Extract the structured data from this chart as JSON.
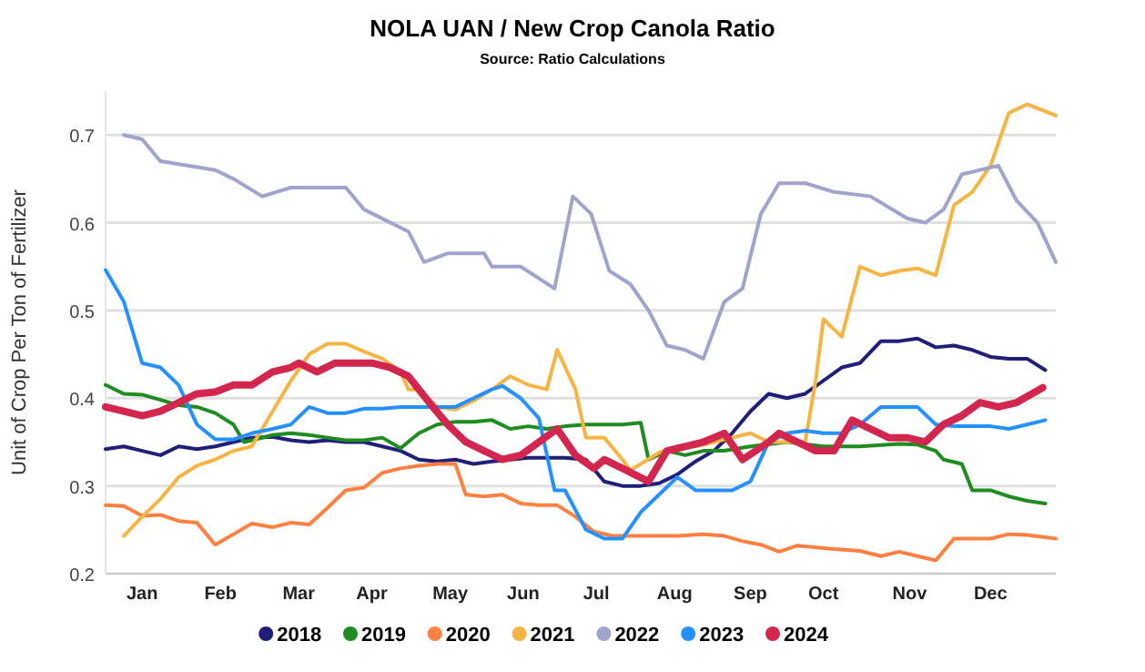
{
  "chart_data": {
    "type": "line",
    "title": "NOLA UAN / New Crop Canola Ratio",
    "subtitle": "Source: Ratio Calculations",
    "ylabel": "Unit of Crop Per Ton of Fertilizer",
    "xlim": [
      "--01-01",
      "--12-31"
    ],
    "xticks": [
      {
        "value": "--01-15",
        "label": "Jan"
      },
      {
        "value": "--02-14",
        "label": "Feb"
      },
      {
        "value": "--03-16",
        "label": "Mar"
      },
      {
        "value": "--04-13",
        "label": "Apr"
      },
      {
        "value": "--05-13",
        "label": "May"
      },
      {
        "value": "--06-10",
        "label": "Jun"
      },
      {
        "value": "--07-08",
        "label": "Jul"
      },
      {
        "value": "--08-07",
        "label": "Aug"
      },
      {
        "value": "--09-05",
        "label": "Sep"
      },
      {
        "value": "--10-03",
        "label": "Oct"
      },
      {
        "value": "--11-05",
        "label": "Nov"
      },
      {
        "value": "--12-06",
        "label": "Dec"
      }
    ],
    "ylim": [
      0.2,
      0.75
    ],
    "yticks": [
      0.2,
      0.3,
      0.4,
      0.5,
      0.6,
      0.7
    ],
    "grid": "y",
    "legend": "bottom",
    "line_style": "solid",
    "series": [
      {
        "name": "2018",
        "color": "#1f1f7a",
        "x": [
          "--01-01",
          "--01-08",
          "--01-15",
          "--01-22",
          "--01-29",
          "--02-05",
          "--02-12",
          "--02-19",
          "--02-26",
          "--03-06",
          "--03-13",
          "--03-20",
          "--03-27",
          "--04-03",
          "--04-10",
          "--04-17",
          "--04-24",
          "--05-01",
          "--05-08",
          "--05-15",
          "--05-22",
          "--05-29",
          "--06-05",
          "--06-12",
          "--06-19",
          "--06-26",
          "--07-04",
          "--07-11",
          "--07-18",
          "--07-25",
          "--08-01",
          "--08-08",
          "--08-15",
          "--08-22",
          "--08-29",
          "--09-05",
          "--09-12",
          "--09-19",
          "--09-26",
          "--10-03",
          "--10-10",
          "--10-17",
          "--10-25",
          "--11-01",
          "--11-08",
          "--11-15",
          "--11-22",
          "--11-29",
          "--12-06",
          "--12-13",
          "--12-20",
          "--12-27"
        ],
        "values": [
          0.342,
          0.345,
          0.34,
          0.335,
          0.345,
          0.342,
          0.345,
          0.35,
          0.355,
          0.356,
          0.352,
          0.35,
          0.352,
          0.35,
          0.35,
          0.345,
          0.34,
          0.33,
          0.328,
          0.33,
          0.325,
          0.328,
          0.33,
          0.332,
          0.332,
          0.332,
          0.33,
          0.305,
          0.3,
          0.3,
          0.303,
          0.313,
          0.328,
          0.34,
          0.36,
          0.385,
          0.405,
          0.4,
          0.405,
          0.42,
          0.435,
          0.44,
          0.465,
          0.465,
          0.468,
          0.458,
          0.46,
          0.455,
          0.447,
          0.445,
          0.445,
          0.432
        ]
      },
      {
        "name": "2019",
        "color": "#1e8c1e",
        "x": [
          "--01-01",
          "--01-08",
          "--01-15",
          "--01-22",
          "--01-29",
          "--02-05",
          "--02-12",
          "--02-19",
          "--02-23",
          "--02-26",
          "--03-06",
          "--03-13",
          "--03-20",
          "--03-27",
          "--04-03",
          "--04-10",
          "--04-17",
          "--04-24",
          "--05-01",
          "--05-08",
          "--05-15",
          "--05-22",
          "--05-29",
          "--06-05",
          "--06-12",
          "--06-19",
          "--06-26",
          "--07-04",
          "--07-18",
          "--07-25",
          "--07-28",
          "--08-04",
          "--08-11",
          "--08-18",
          "--08-26",
          "--09-05",
          "--09-19",
          "--10-03",
          "--10-17",
          "--11-01",
          "--11-08",
          "--11-15",
          "--11-18",
          "--11-25",
          "--11-29",
          "--12-06",
          "--12-13",
          "--12-20",
          "--12-27"
        ],
        "values": [
          0.415,
          0.405,
          0.404,
          0.398,
          0.392,
          0.39,
          0.383,
          0.37,
          0.35,
          0.352,
          0.358,
          0.36,
          0.358,
          0.355,
          0.352,
          0.352,
          0.355,
          0.343,
          0.36,
          0.37,
          0.373,
          0.373,
          0.375,
          0.365,
          0.368,
          0.365,
          0.368,
          0.37,
          0.37,
          0.372,
          0.33,
          0.34,
          0.335,
          0.34,
          0.34,
          0.345,
          0.35,
          0.345,
          0.345,
          0.348,
          0.347,
          0.34,
          0.33,
          0.325,
          0.295,
          0.295,
          0.288,
          0.283,
          0.28
        ]
      },
      {
        "name": "2020",
        "color": "#ff8040",
        "x": [
          "--01-01",
          "--01-08",
          "--01-15",
          "--01-22",
          "--01-29",
          "--02-05",
          "--02-12",
          "--02-19",
          "--02-26",
          "--03-06",
          "--03-13",
          "--03-20",
          "--03-27",
          "--04-03",
          "--04-10",
          "--04-17",
          "--04-24",
          "--05-01",
          "--05-08",
          "--05-15",
          "--05-19",
          "--05-26",
          "--06-02",
          "--06-09",
          "--06-16",
          "--06-23",
          "--06-30",
          "--07-07",
          "--07-14",
          "--07-25",
          "--08-08",
          "--08-18",
          "--08-26",
          "--09-02",
          "--09-09",
          "--09-16",
          "--09-23",
          "--10-07",
          "--10-17",
          "--10-25",
          "--11-01",
          "--11-08",
          "--11-15",
          "--11-22",
          "--12-06",
          "--12-13",
          "--12-20",
          "--12-31"
        ],
        "values": [
          0.278,
          0.277,
          0.266,
          0.267,
          0.26,
          0.258,
          0.233,
          0.245,
          0.257,
          0.253,
          0.258,
          0.256,
          0.275,
          0.295,
          0.298,
          0.315,
          0.32,
          0.323,
          0.325,
          0.325,
          0.29,
          0.288,
          0.29,
          0.28,
          0.278,
          0.278,
          0.265,
          0.248,
          0.243,
          0.243,
          0.243,
          0.245,
          0.243,
          0.237,
          0.233,
          0.225,
          0.232,
          0.228,
          0.226,
          0.22,
          0.225,
          0.22,
          0.215,
          0.24,
          0.24,
          0.245,
          0.244,
          0.24
        ]
      },
      {
        "name": "2021",
        "color": "#f7b443",
        "x": [
          "--01-08",
          "--01-15",
          "--01-22",
          "--01-29",
          "--02-05",
          "--02-12",
          "--02-19",
          "--02-26",
          "--03-06",
          "--03-13",
          "--03-20",
          "--03-27",
          "--04-03",
          "--04-10",
          "--04-17",
          "--04-24",
          "--04-27",
          "--05-01",
          "--05-08",
          "--05-15",
          "--05-22",
          "--05-29",
          "--06-05",
          "--06-12",
          "--06-19",
          "--06-23",
          "--06-30",
          "--07-04",
          "--07-11",
          "--07-18",
          "--07-21",
          "--07-25",
          "--08-01",
          "--08-08",
          "--08-15",
          "--08-22",
          "--08-29",
          "--09-05",
          "--09-12",
          "--09-19",
          "--09-26",
          "--09-30",
          "--10-03",
          "--10-10",
          "--10-17",
          "--10-25",
          "--11-01",
          "--11-08",
          "--11-15",
          "--11-22",
          "--11-29",
          "--12-06",
          "--12-13",
          "--12-20",
          "--12-31"
        ],
        "values": [
          0.243,
          0.265,
          0.285,
          0.31,
          0.323,
          0.33,
          0.34,
          0.345,
          0.385,
          0.42,
          0.45,
          0.462,
          0.462,
          0.453,
          0.445,
          0.43,
          0.41,
          0.41,
          0.39,
          0.387,
          0.397,
          0.41,
          0.425,
          0.415,
          0.41,
          0.455,
          0.41,
          0.355,
          0.355,
          0.33,
          0.318,
          0.325,
          0.338,
          0.345,
          0.345,
          0.35,
          0.355,
          0.36,
          0.35,
          0.35,
          0.35,
          0.42,
          0.49,
          0.47,
          0.55,
          0.54,
          0.545,
          0.548,
          0.54,
          0.62,
          0.635,
          0.665,
          0.725,
          0.735,
          0.722
        ]
      },
      {
        "name": "2022",
        "color": "#a0a3cc",
        "x": [
          "--01-08",
          "--01-15",
          "--01-22",
          "--02-12",
          "--02-19",
          "--03-02",
          "--03-13",
          "--04-03",
          "--04-10",
          "--04-27",
          "--05-03",
          "--05-12",
          "--05-26",
          "--05-29",
          "--06-09",
          "--06-22",
          "--06-29",
          "--07-06",
          "--07-13",
          "--07-21",
          "--07-28",
          "--08-04",
          "--08-11",
          "--08-18",
          "--08-26",
          "--09-02",
          "--09-09",
          "--09-16",
          "--09-26",
          "--10-07",
          "--10-21",
          "--11-04",
          "--11-11",
          "--11-18",
          "--11-25",
          "--12-09",
          "--12-16",
          "--12-24",
          "--12-31"
        ],
        "values": [
          0.7,
          0.695,
          0.67,
          0.66,
          0.65,
          0.63,
          0.64,
          0.64,
          0.615,
          0.59,
          0.555,
          0.565,
          0.565,
          0.55,
          0.55,
          0.525,
          0.63,
          0.61,
          0.545,
          0.53,
          0.5,
          0.46,
          0.455,
          0.445,
          0.51,
          0.525,
          0.61,
          0.645,
          0.645,
          0.635,
          0.63,
          0.605,
          0.6,
          0.615,
          0.655,
          0.665,
          0.625,
          0.6,
          0.555
        ]
      },
      {
        "name": "2023",
        "color": "#2590ff",
        "x": [
          "--01-01",
          "--01-08",
          "--01-15",
          "--01-22",
          "--01-29",
          "--02-05",
          "--02-12",
          "--02-19",
          "--02-26",
          "--03-06",
          "--03-13",
          "--03-20",
          "--03-27",
          "--04-03",
          "--04-10",
          "--04-17",
          "--04-24",
          "--05-01",
          "--05-08",
          "--05-15",
          "--05-22",
          "--05-29",
          "--06-02",
          "--06-09",
          "--06-16",
          "--06-22",
          "--06-26",
          "--07-04",
          "--07-11",
          "--07-18",
          "--07-25",
          "--08-01",
          "--08-08",
          "--08-15",
          "--08-22",
          "--08-29",
          "--09-05",
          "--09-12",
          "--09-19",
          "--09-26",
          "--10-03",
          "--10-10",
          "--10-17",
          "--10-25",
          "--11-01",
          "--11-08",
          "--11-15",
          "--11-22",
          "--11-29",
          "--12-06",
          "--12-13",
          "--12-20",
          "--12-27"
        ],
        "values": [
          0.546,
          0.51,
          0.44,
          0.435,
          0.415,
          0.37,
          0.353,
          0.353,
          0.36,
          0.365,
          0.37,
          0.39,
          0.383,
          0.383,
          0.388,
          0.388,
          0.39,
          0.39,
          0.39,
          0.39,
          0.4,
          0.41,
          0.414,
          0.4,
          0.377,
          0.295,
          0.295,
          0.25,
          0.24,
          0.24,
          0.27,
          0.29,
          0.31,
          0.295,
          0.295,
          0.295,
          0.305,
          0.35,
          0.36,
          0.363,
          0.36,
          0.36,
          0.37,
          0.39,
          0.39,
          0.39,
          0.37,
          0.368,
          0.368,
          0.368,
          0.365,
          0.37,
          0.375
        ]
      },
      {
        "name": "2024",
        "color": "#d3264f",
        "x": [
          "--01-01",
          "--01-08",
          "--01-15",
          "--01-22",
          "--01-29",
          "--02-05",
          "--02-12",
          "--02-19",
          "--02-26",
          "--03-06",
          "--03-13",
          "--03-16",
          "--03-23",
          "--03-30",
          "--04-06",
          "--04-13",
          "--04-20",
          "--04-27",
          "--05-05",
          "--05-12",
          "--05-19",
          "--05-26",
          "--06-02",
          "--06-09",
          "--06-16",
          "--06-23",
          "--06-30",
          "--07-07",
          "--07-11",
          "--07-18",
          "--07-28",
          "--08-04",
          "--08-11",
          "--08-18",
          "--08-26",
          "--09-02",
          "--09-12",
          "--09-16",
          "--09-23",
          "--09-30",
          "--10-07",
          "--10-14",
          "--10-21",
          "--10-28",
          "--11-04",
          "--11-11",
          "--11-18",
          "--11-25",
          "--12-02",
          "--12-09",
          "--12-16",
          "--12-26"
        ],
        "values": [
          0.39,
          0.385,
          0.38,
          0.385,
          0.395,
          0.405,
          0.407,
          0.415,
          0.415,
          0.43,
          0.435,
          0.44,
          0.43,
          0.44,
          0.44,
          0.44,
          0.435,
          0.425,
          0.395,
          0.37,
          0.35,
          0.34,
          0.33,
          0.335,
          0.35,
          0.365,
          0.335,
          0.32,
          0.33,
          0.32,
          0.305,
          0.34,
          0.345,
          0.35,
          0.36,
          0.33,
          0.35,
          0.36,
          0.35,
          0.34,
          0.34,
          0.375,
          0.365,
          0.355,
          0.355,
          0.35,
          0.37,
          0.38,
          0.395,
          0.39,
          0.395,
          0.412
        ]
      }
    ]
  }
}
